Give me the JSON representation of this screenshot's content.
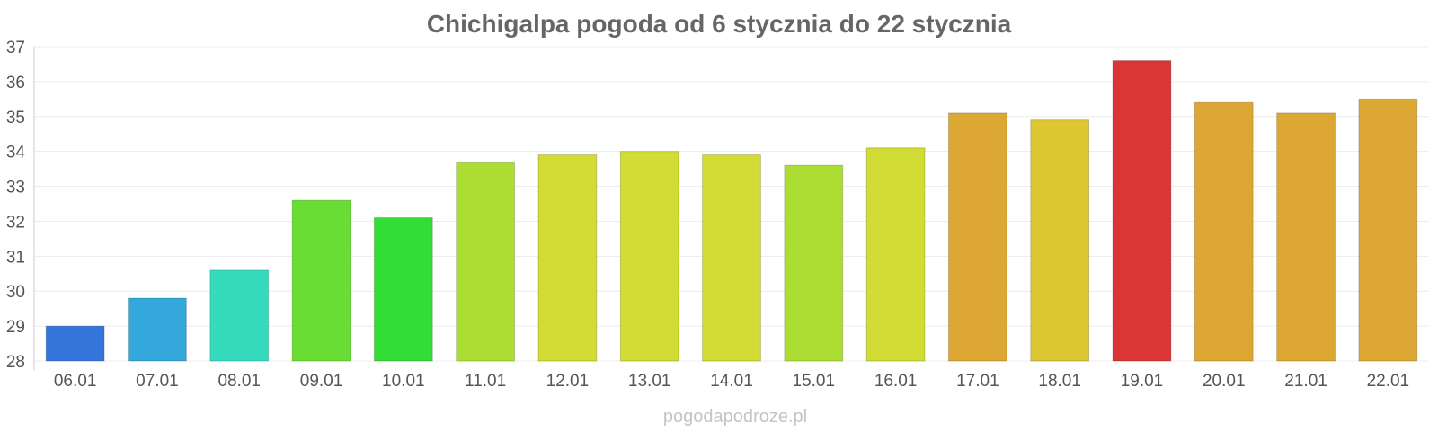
{
  "chart_data": {
    "type": "bar",
    "title": "Chichigalpa pogoda od 6 stycznia do 22 stycznia",
    "xlabel": "",
    "ylabel": "",
    "categories": [
      "06.01",
      "07.01",
      "08.01",
      "09.01",
      "10.01",
      "11.01",
      "12.01",
      "13.01",
      "14.01",
      "15.01",
      "16.01",
      "17.01",
      "18.01",
      "19.01",
      "20.01",
      "21.01",
      "22.01"
    ],
    "values": [
      29.0,
      29.8,
      30.6,
      32.6,
      32.1,
      33.7,
      33.9,
      34.0,
      33.9,
      33.6,
      34.1,
      35.1,
      34.9,
      36.6,
      35.4,
      35.1,
      35.5
    ],
    "colors": [
      "#3475db",
      "#35a8db",
      "#35dbbc",
      "#6add35",
      "#33dd35",
      "#acdd33",
      "#d1dd35",
      "#d1dd35",
      "#d1dd35",
      "#acdd33",
      "#d1dd35",
      "#dca833",
      "#dcc733",
      "#dc3535",
      "#dca833",
      "#dca833",
      "#dca833"
    ],
    "ylim": [
      28,
      37
    ],
    "yticks": [
      28,
      29,
      30,
      31,
      32,
      33,
      34,
      35,
      36,
      37
    ],
    "grid": true,
    "legend": "none"
  },
  "watermark": "pogodapodroze.pl"
}
